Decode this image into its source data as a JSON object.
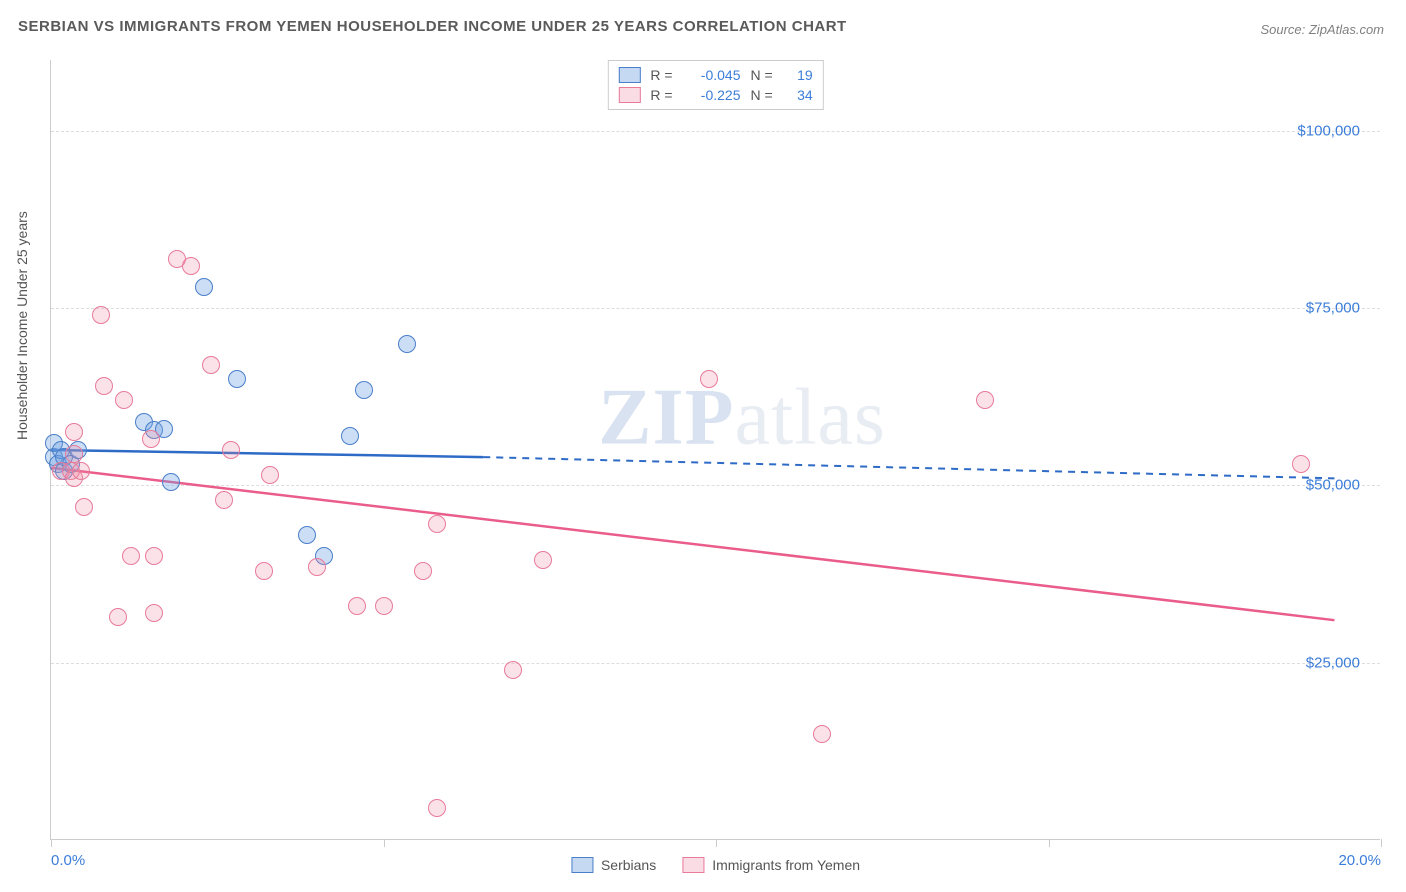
{
  "title": "SERBIAN VS IMMIGRANTS FROM YEMEN HOUSEHOLDER INCOME UNDER 25 YEARS CORRELATION CHART",
  "source": "Source: ZipAtlas.com",
  "y_axis_title": "Householder Income Under 25 years",
  "watermark_zip": "ZIP",
  "watermark_atlas": "atlas",
  "chart": {
    "type": "scatter",
    "xlim": [
      0,
      20
    ],
    "ylim": [
      0,
      110000
    ],
    "y_gridlines": [
      25000,
      50000,
      75000,
      100000
    ],
    "y_tick_labels": [
      "$25,000",
      "$50,000",
      "$75,000",
      "$100,000"
    ],
    "x_ticks": [
      0,
      5,
      10,
      15,
      20
    ],
    "x_tick_labels": [
      "0.0%",
      "",
      "",
      "",
      "20.0%"
    ],
    "background_color": "#ffffff",
    "grid_color": "#dddddd",
    "series": [
      {
        "name": "Serbians",
        "color_fill": "rgba(110,160,225,0.35)",
        "color_border": "#4a7fc9",
        "trend_color": "#2e6bc7",
        "trend_start": [
          0,
          55000
        ],
        "trend_solid_end": [
          6.5,
          54000
        ],
        "trend_dash_end": [
          19.3,
          51000
        ],
        "R": "-0.045",
        "N": "19",
        "points": [
          [
            0.05,
            54000
          ],
          [
            0.05,
            56000
          ],
          [
            0.1,
            53000
          ],
          [
            0.15,
            55000
          ],
          [
            0.2,
            54000
          ],
          [
            0.2,
            52000
          ],
          [
            0.3,
            53000
          ],
          [
            0.4,
            55000
          ],
          [
            1.4,
            59000
          ],
          [
            1.55,
            57800
          ],
          [
            1.7,
            58000
          ],
          [
            2.3,
            78000
          ],
          [
            1.8,
            50500
          ],
          [
            2.8,
            65000
          ],
          [
            4.5,
            57000
          ],
          [
            4.7,
            63500
          ],
          [
            5.35,
            70000
          ],
          [
            3.85,
            43000
          ],
          [
            4.1,
            40000
          ]
        ]
      },
      {
        "name": "Immigrants from Yemen",
        "color_fill": "rgba(240,140,165,0.25)",
        "color_border": "#e87a9a",
        "trend_color": "#ea5c8a",
        "trend_start": [
          0,
          52500
        ],
        "trend_solid_end": [
          19.3,
          31000
        ],
        "R": "-0.225",
        "N": "34",
        "points": [
          [
            0.15,
            52000
          ],
          [
            0.3,
            52000
          ],
          [
            0.35,
            51000
          ],
          [
            0.35,
            57500
          ],
          [
            0.35,
            54500
          ],
          [
            0.45,
            52000
          ],
          [
            0.5,
            47000
          ],
          [
            0.75,
            74000
          ],
          [
            0.8,
            64000
          ],
          [
            1.1,
            62000
          ],
          [
            1.2,
            40000
          ],
          [
            1.55,
            40000
          ],
          [
            1.55,
            32000
          ],
          [
            1.5,
            56500
          ],
          [
            1.9,
            82000
          ],
          [
            2.1,
            81000
          ],
          [
            2.4,
            67000
          ],
          [
            2.6,
            48000
          ],
          [
            2.7,
            55000
          ],
          [
            3.2,
            38000
          ],
          [
            3.3,
            51500
          ],
          [
            4.0,
            38500
          ],
          [
            4.6,
            33000
          ],
          [
            5.0,
            33000
          ],
          [
            5.6,
            38000
          ],
          [
            5.8,
            44500
          ],
          [
            6.95,
            24000
          ],
          [
            7.4,
            39500
          ],
          [
            9.9,
            65000
          ],
          [
            11.6,
            15000
          ],
          [
            14.05,
            62000
          ],
          [
            18.8,
            53000
          ],
          [
            5.8,
            4500
          ],
          [
            1.0,
            31500
          ]
        ]
      }
    ]
  },
  "legend_top": {
    "r_label": "R =",
    "n_label": "N ="
  },
  "legend_bottom": {
    "series1": "Serbians",
    "series2": "Immigrants from Yemen"
  }
}
